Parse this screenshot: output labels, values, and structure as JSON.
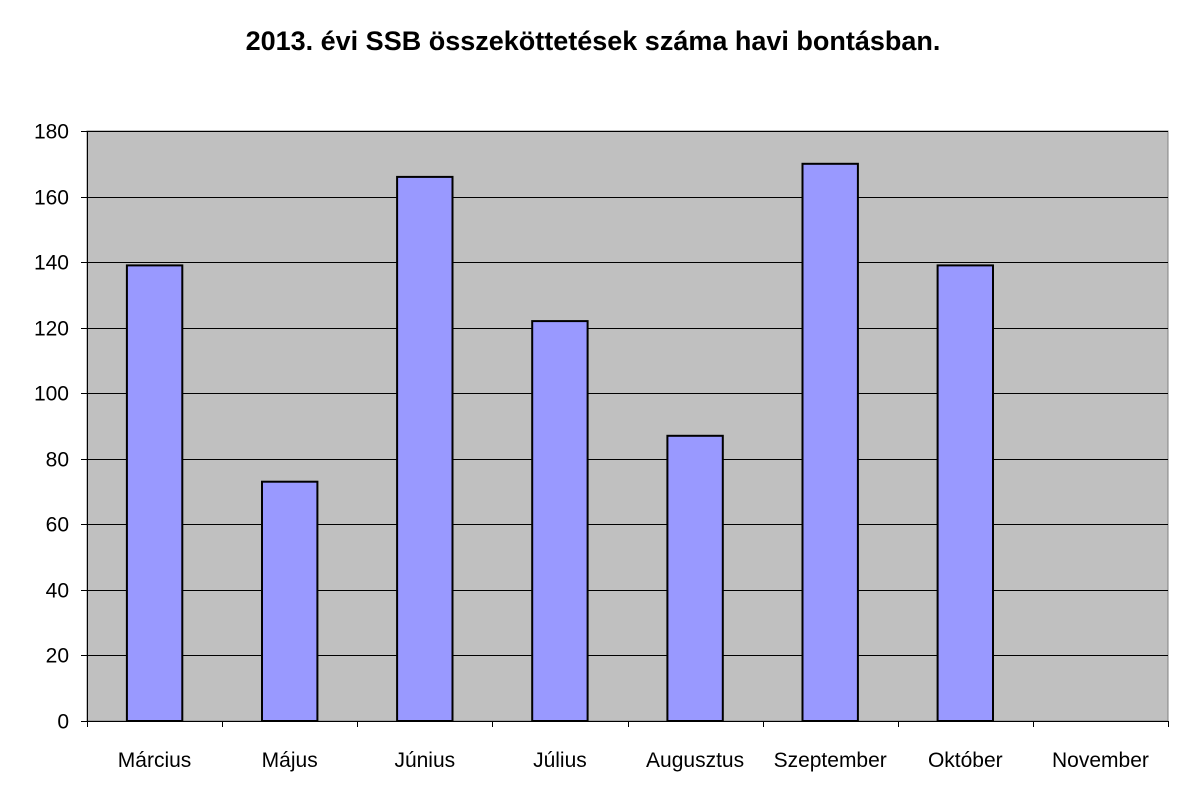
{
  "chart_data": {
    "type": "bar",
    "title": "2013. évi SSB összeköttetések száma havi bontásban.",
    "categories": [
      "Március",
      "Május",
      "Június",
      "Július",
      "Augusztus",
      "Szeptember",
      "Október",
      "November"
    ],
    "values": [
      139,
      73,
      166,
      122,
      87,
      170,
      139,
      0
    ],
    "xlabel": "",
    "ylabel": "",
    "ylim": [
      0,
      180
    ],
    "yticks": [
      0,
      20,
      40,
      60,
      80,
      100,
      120,
      140,
      160,
      180
    ],
    "grid": true,
    "legend": "none",
    "colors": {
      "plot_background": "#c0c0c0",
      "bar_fill": "#9999ff",
      "bar_stroke": "#000000",
      "gridline": "#000000"
    }
  }
}
